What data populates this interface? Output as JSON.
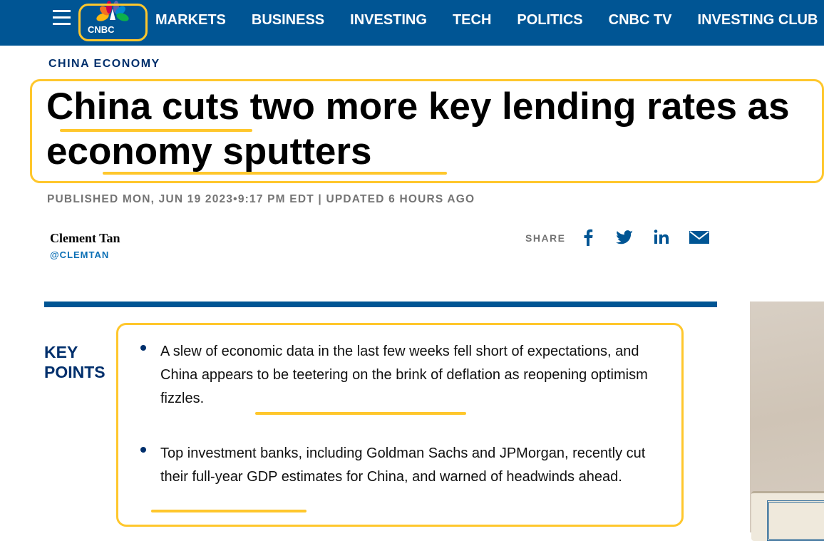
{
  "nav": {
    "logo": "CNBC",
    "items": [
      "MARKETS",
      "BUSINESS",
      "INVESTING",
      "TECH",
      "POLITICS",
      "CNBC TV",
      "INVESTING CLUB"
    ],
    "bg_color": "#005594"
  },
  "article": {
    "category": "CHINA ECONOMY",
    "title": "China cuts two more key lending rates as economy sputters",
    "published": "PUBLISHED MON, JUN 19 2023•9:17 PM EDT | UPDATED 6 HOURS AGO",
    "author": "Clement Tan",
    "handle": "@CLEMTAN",
    "share_label": "SHARE",
    "share_icons": [
      "facebook-icon",
      "twitter-icon",
      "linkedin-icon",
      "email-icon"
    ],
    "key_points_label": "KEY POINTS",
    "key_points": [
      "A slew of economic data in the last few weeks fell short of expectations, and China appears to be teetering on the brink of deflation as reopening optimism fizzles.",
      "Top investment banks, including Goldman Sachs and JPMorgan, recently cut their full-year GDP estimates for China, and warned of headwinds ahead."
    ]
  },
  "highlight_color": "#ffc72c"
}
